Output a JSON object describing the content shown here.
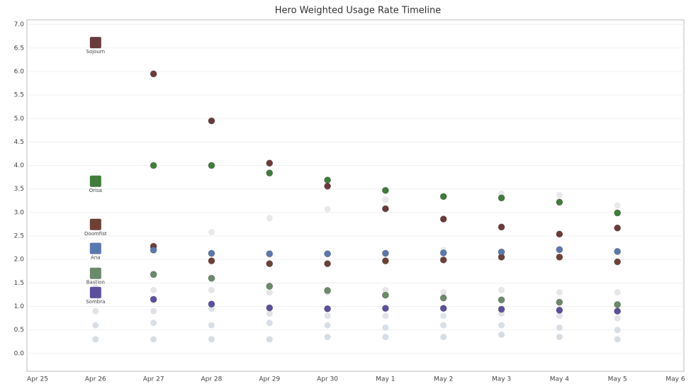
{
  "chart_data": {
    "type": "scatter",
    "title": "Hero Weighted Usage Rate Timeline",
    "categories": [
      "Apr 25",
      "Apr 26",
      "Apr 27",
      "Apr 28",
      "Apr 29",
      "Apr 30",
      "May 1",
      "May 2",
      "May 3",
      "May 4",
      "May 5",
      "May 6"
    ],
    "ylim": [
      -0.38,
      7.1
    ],
    "yticks": [
      {
        "value": 0,
        "label": "0.0"
      },
      0.5,
      {
        "value": 1,
        "label": "1.0"
      },
      1.5,
      {
        "value": 2,
        "label": "2.0"
      },
      2.5,
      {
        "value": 3,
        "label": "3.0"
      },
      3.5,
      {
        "value": 4,
        "label": "4.0"
      },
      4.5,
      {
        "value": 5,
        "label": "5.0"
      },
      5.5,
      {
        "value": 6,
        "label": "6.0"
      },
      6.5,
      {
        "value": 7,
        "label": "7.0"
      }
    ],
    "grid": true,
    "series": [
      {
        "color": "#d5dde3",
        "values": [
          null,
          0.3,
          0.3,
          0.3,
          0.3,
          0.35,
          0.35,
          0.35,
          0.4,
          0.35,
          0.3,
          null
        ]
      },
      {
        "color": "#d9dfe6",
        "values": [
          null,
          0.6,
          0.65,
          0.6,
          0.65,
          0.6,
          0.55,
          0.6,
          0.6,
          0.55,
          0.5,
          null
        ]
      },
      {
        "color": "#e0e3e8",
        "values": [
          null,
          0.9,
          0.9,
          0.95,
          0.85,
          0.8,
          0.8,
          0.8,
          0.85,
          0.8,
          0.75,
          null
        ]
      },
      {
        "color": "#e6e6e6",
        "values": [
          null,
          1.4,
          1.35,
          1.35,
          1.3,
          1.3,
          1.35,
          1.3,
          1.35,
          1.3,
          1.3,
          null
        ]
      },
      {
        "color": "#e9e9ec",
        "values": [
          null,
          null,
          1.7,
          2.58,
          2.88,
          3.07,
          3.27,
          2.2,
          3.4,
          3.37,
          3.15,
          null
        ]
      },
      {
        "name": "Sojourn",
        "color": "#6b3a3a",
        "values": [
          null,
          6.6,
          5.95,
          4.95,
          4.05,
          3.56,
          3.08,
          2.86,
          2.69,
          2.54,
          2.67,
          null
        ]
      },
      {
        "name": "Orisa",
        "color": "#3f7d3a",
        "values": [
          null,
          3.65,
          4.0,
          4.0,
          3.84,
          3.69,
          3.47,
          3.34,
          3.31,
          3.22,
          2.99,
          null
        ]
      },
      {
        "name": "Doomfist",
        "color": "#6e4036",
        "values": [
          null,
          2.73,
          2.28,
          1.97,
          1.91,
          1.91,
          1.97,
          1.99,
          2.05,
          2.05,
          1.95,
          null
        ]
      },
      {
        "name": "Ana",
        "color": "#5a78b0",
        "values": [
          null,
          2.22,
          2.2,
          2.13,
          2.12,
          2.12,
          2.13,
          2.14,
          2.16,
          2.21,
          2.17,
          null
        ]
      },
      {
        "name": "Bastion",
        "color": "#6b8a6b",
        "values": [
          null,
          1.69,
          1.68,
          1.6,
          1.43,
          1.34,
          1.24,
          1.18,
          1.14,
          1.09,
          1.04,
          null
        ]
      },
      {
        "name": "Sombra",
        "color": "#5b4fa0",
        "values": [
          null,
          1.28,
          1.15,
          1.05,
          0.97,
          0.95,
          0.96,
          0.96,
          0.94,
          0.92,
          0.9,
          null
        ]
      }
    ]
  }
}
